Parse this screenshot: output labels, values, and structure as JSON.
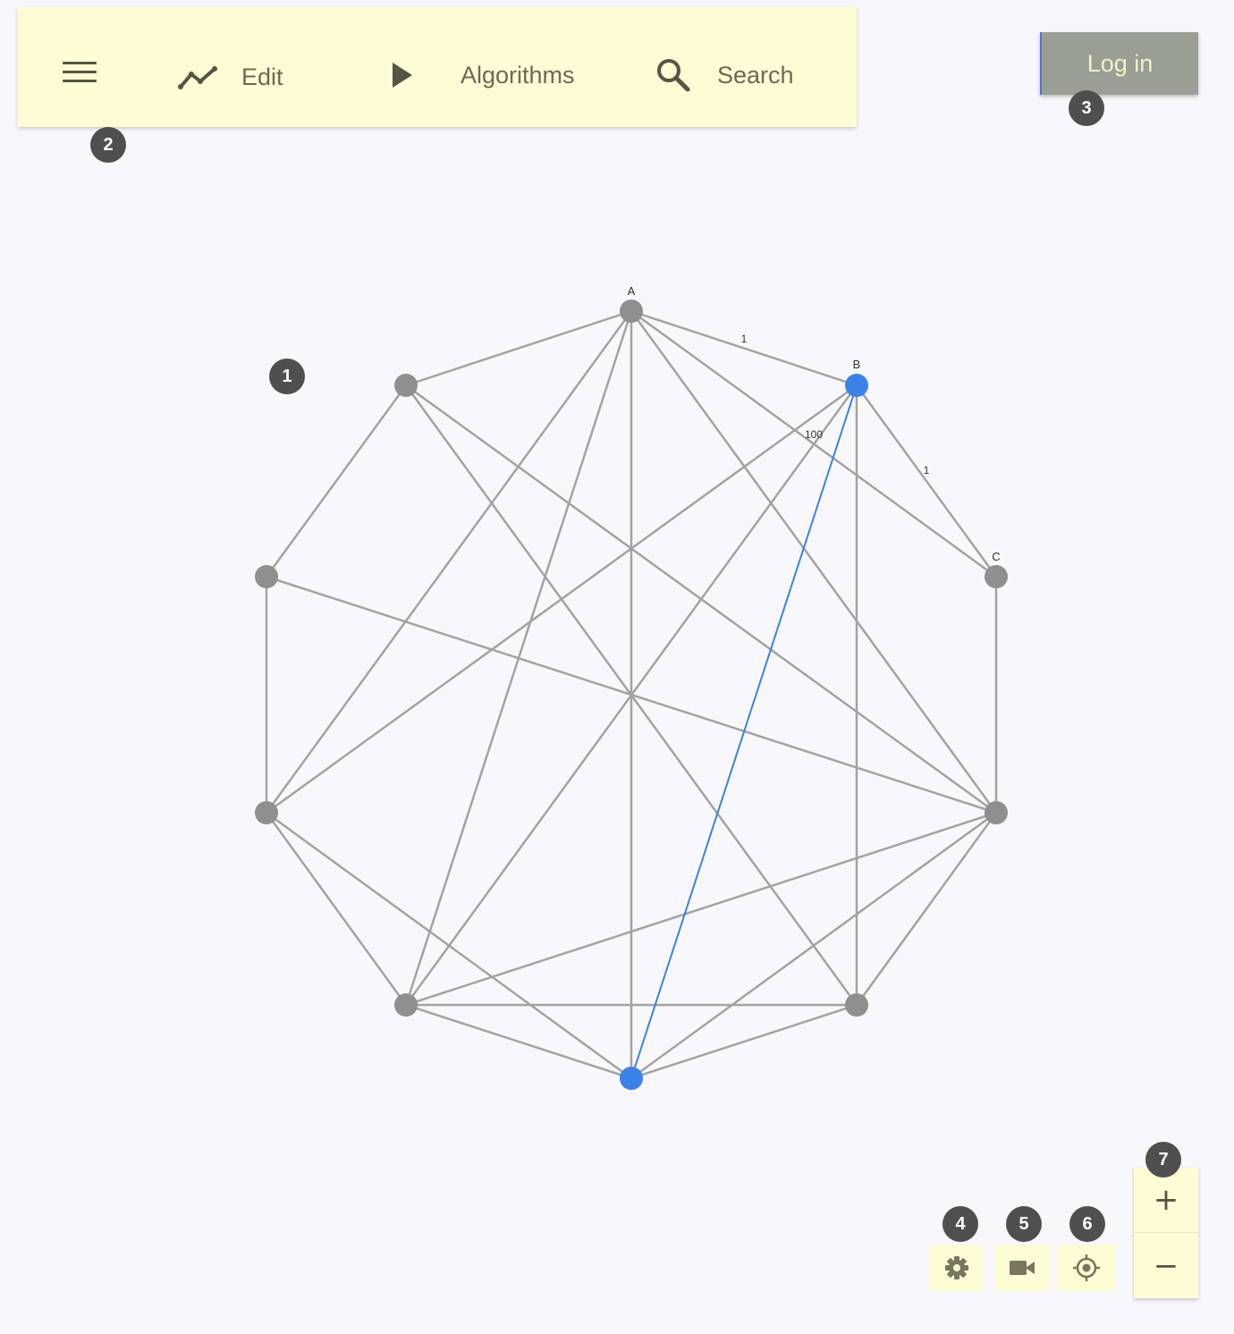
{
  "toolbar": {
    "menu_icon": "hamburger-menu-icon",
    "edit_label": "Edit",
    "edit_icon": "line-chart-icon",
    "algorithms_label": "Algorithms",
    "algorithms_icon": "play-icon",
    "search_label": "Search",
    "search_icon": "search-icon"
  },
  "login": {
    "label": "Log in"
  },
  "markers": [
    "1",
    "2",
    "3",
    "4",
    "5",
    "6",
    "7"
  ],
  "graph": {
    "node_labels": {
      "A": "A",
      "B": "B",
      "C": "C"
    },
    "edge_weights": {
      "A_B": "1",
      "B_C": "1",
      "A_C": "100"
    },
    "colors": {
      "node": "#8f8f8f",
      "edge": "#a3a3a3",
      "selected": "#3b82e8"
    }
  },
  "controls": {
    "settings_icon": "gear-icon",
    "camera_icon": "video-camera-icon",
    "center_icon": "locate-icon",
    "zoom_in_label": "+",
    "zoom_out_label": "−"
  },
  "colors": {
    "toolbar_bg": "#fdfcd4",
    "login_bg": "#9a9f95",
    "page_bg": "#f8f7fb"
  }
}
